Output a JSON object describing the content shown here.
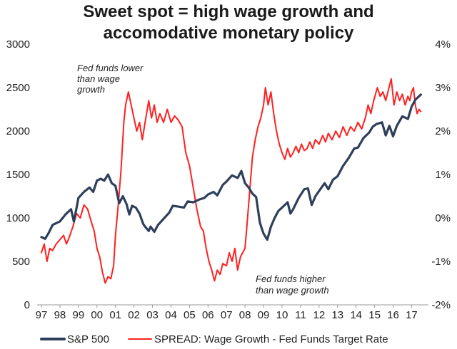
{
  "title_line1": "Sweet spot = high wage growth and",
  "title_line2": "accomodative monetary policy",
  "chart_data": {
    "type": "line",
    "title": "Sweet spot = high wage growth and accomodative monetary policy",
    "x_tick_labels": [
      "97",
      "98",
      "99",
      "00",
      "01",
      "02",
      "03",
      "04",
      "05",
      "06",
      "07",
      "08",
      "09",
      "10",
      "11",
      "12",
      "13",
      "14",
      "15",
      "16",
      "17"
    ],
    "xlim": [
      1997,
      2017.6
    ],
    "left_axis": {
      "ticks": [
        0,
        500,
        1000,
        1500,
        2000,
        2500,
        3000
      ],
      "ylim": [
        0,
        3000
      ]
    },
    "right_axis": {
      "ticks": [
        -2,
        -1,
        0,
        1,
        2,
        3,
        4
      ],
      "tick_labels": [
        "-2%",
        "-1%",
        "0%",
        "1%",
        "2%",
        "3%",
        "4%"
      ],
      "ylim": [
        -2,
        4
      ]
    },
    "grid": false,
    "legend_position": "bottom",
    "annotations": [
      {
        "text_lines": [
          "Fed funds lower",
          "than wage",
          "growth"
        ],
        "near": "2000-2001, upper-left"
      },
      {
        "text_lines": [
          "Fed funds higher",
          "than wage growth"
        ],
        "near": "2009-2011, bottom"
      }
    ],
    "series": [
      {
        "name": "S&P 500",
        "axis": "left",
        "color": "#2e3f5c",
        "points": [
          [
            1997.0,
            780
          ],
          [
            1997.2,
            760
          ],
          [
            1997.4,
            830
          ],
          [
            1997.6,
            920
          ],
          [
            1997.8,
            940
          ],
          [
            1998.0,
            960
          ],
          [
            1998.3,
            1040
          ],
          [
            1998.6,
            1100
          ],
          [
            1998.75,
            960
          ],
          [
            1998.9,
            1120
          ],
          [
            1999.0,
            1230
          ],
          [
            1999.3,
            1300
          ],
          [
            1999.6,
            1350
          ],
          [
            1999.8,
            1300
          ],
          [
            2000.0,
            1430
          ],
          [
            2000.2,
            1450
          ],
          [
            2000.4,
            1430
          ],
          [
            2000.6,
            1500
          ],
          [
            2000.8,
            1400
          ],
          [
            2001.0,
            1370
          ],
          [
            2001.2,
            1170
          ],
          [
            2001.4,
            1250
          ],
          [
            2001.6,
            1160
          ],
          [
            2001.75,
            1040
          ],
          [
            2001.9,
            1140
          ],
          [
            2002.1,
            1120
          ],
          [
            2002.3,
            1050
          ],
          [
            2002.5,
            930
          ],
          [
            2002.6,
            900
          ],
          [
            2002.8,
            850
          ],
          [
            2002.9,
            900
          ],
          [
            2003.1,
            840
          ],
          [
            2003.3,
            920
          ],
          [
            2003.6,
            990
          ],
          [
            2003.9,
            1060
          ],
          [
            2004.1,
            1140
          ],
          [
            2004.4,
            1130
          ],
          [
            2004.7,
            1120
          ],
          [
            2004.9,
            1190
          ],
          [
            2005.2,
            1180
          ],
          [
            2005.5,
            1210
          ],
          [
            2005.8,
            1230
          ],
          [
            2006.0,
            1270
          ],
          [
            2006.3,
            1300
          ],
          [
            2006.5,
            1260
          ],
          [
            2006.8,
            1380
          ],
          [
            2007.0,
            1420
          ],
          [
            2007.3,
            1490
          ],
          [
            2007.6,
            1460
          ],
          [
            2007.8,
            1540
          ],
          [
            2008.0,
            1400
          ],
          [
            2008.2,
            1350
          ],
          [
            2008.4,
            1280
          ],
          [
            2008.6,
            1240
          ],
          [
            2008.8,
            950
          ],
          [
            2008.9,
            880
          ],
          [
            2009.0,
            820
          ],
          [
            2009.2,
            750
          ],
          [
            2009.4,
            900
          ],
          [
            2009.6,
            1000
          ],
          [
            2009.8,
            1080
          ],
          [
            2010.0,
            1120
          ],
          [
            2010.3,
            1180
          ],
          [
            2010.45,
            1050
          ],
          [
            2010.6,
            1100
          ],
          [
            2010.9,
            1230
          ],
          [
            2011.2,
            1330
          ],
          [
            2011.4,
            1340
          ],
          [
            2011.6,
            1150
          ],
          [
            2011.8,
            1250
          ],
          [
            2012.0,
            1310
          ],
          [
            2012.3,
            1400
          ],
          [
            2012.5,
            1330
          ],
          [
            2012.75,
            1440
          ],
          [
            2013.0,
            1480
          ],
          [
            2013.3,
            1600
          ],
          [
            2013.6,
            1690
          ],
          [
            2013.9,
            1800
          ],
          [
            2014.1,
            1810
          ],
          [
            2014.4,
            1920
          ],
          [
            2014.7,
            1980
          ],
          [
            2014.9,
            2050
          ],
          [
            2015.1,
            2080
          ],
          [
            2015.4,
            2100
          ],
          [
            2015.6,
            1950
          ],
          [
            2015.8,
            2060
          ],
          [
            2016.0,
            1940
          ],
          [
            2016.2,
            2060
          ],
          [
            2016.5,
            2170
          ],
          [
            2016.8,
            2140
          ],
          [
            2017.0,
            2280
          ],
          [
            2017.2,
            2360
          ],
          [
            2017.4,
            2400
          ],
          [
            2017.5,
            2420
          ]
        ]
      },
      {
        "name": "SPREAD: Wage Growth - Fed Funds Target Rate",
        "axis": "right",
        "color": "#ff2020",
        "points": [
          [
            1997.0,
            -0.8
          ],
          [
            1997.15,
            -0.6
          ],
          [
            1997.3,
            -1.0
          ],
          [
            1997.45,
            -0.7
          ],
          [
            1997.6,
            -0.75
          ],
          [
            1997.8,
            -0.6
          ],
          [
            1998.0,
            -0.5
          ],
          [
            1998.2,
            -0.4
          ],
          [
            1998.35,
            -0.6
          ],
          [
            1998.5,
            -0.45
          ],
          [
            1998.7,
            -0.2
          ],
          [
            1998.9,
            0.1
          ],
          [
            1999.1,
            0.0
          ],
          [
            1999.3,
            0.3
          ],
          [
            1999.5,
            0.2
          ],
          [
            1999.7,
            -0.1
          ],
          [
            1999.85,
            -0.3
          ],
          [
            2000.0,
            -0.7
          ],
          [
            2000.15,
            -0.9
          ],
          [
            2000.3,
            -1.25
          ],
          [
            2000.45,
            -1.5
          ],
          [
            2000.6,
            -1.35
          ],
          [
            2000.75,
            -1.4
          ],
          [
            2000.9,
            -1.1
          ],
          [
            2001.0,
            -0.4
          ],
          [
            2001.15,
            0.3
          ],
          [
            2001.3,
            1.1
          ],
          [
            2001.45,
            2.2
          ],
          [
            2001.55,
            2.6
          ],
          [
            2001.7,
            2.9
          ],
          [
            2001.85,
            2.6
          ],
          [
            2002.0,
            2.3
          ],
          [
            2002.15,
            2.0
          ],
          [
            2002.3,
            2.2
          ],
          [
            2002.45,
            1.8
          ],
          [
            2002.6,
            2.2
          ],
          [
            2002.8,
            2.7
          ],
          [
            2002.95,
            2.3
          ],
          [
            2003.1,
            2.6
          ],
          [
            2003.25,
            2.2
          ],
          [
            2003.4,
            2.4
          ],
          [
            2003.6,
            2.2
          ],
          [
            2003.8,
            2.5
          ],
          [
            2004.0,
            2.2
          ],
          [
            2004.2,
            2.35
          ],
          [
            2004.4,
            2.25
          ],
          [
            2004.6,
            2.1
          ],
          [
            2004.8,
            1.5
          ],
          [
            2005.0,
            1.2
          ],
          [
            2005.2,
            0.7
          ],
          [
            2005.4,
            0.2
          ],
          [
            2005.6,
            -0.2
          ],
          [
            2005.75,
            -0.3
          ],
          [
            2005.9,
            -0.7
          ],
          [
            2006.05,
            -1.0
          ],
          [
            2006.2,
            -1.2
          ],
          [
            2006.35,
            -1.45
          ],
          [
            2006.5,
            -1.2
          ],
          [
            2006.65,
            -1.3
          ],
          [
            2006.8,
            -1.05
          ],
          [
            2007.0,
            -1.1
          ],
          [
            2007.15,
            -0.8
          ],
          [
            2007.3,
            -1.0
          ],
          [
            2007.45,
            -0.7
          ],
          [
            2007.6,
            -1.2
          ],
          [
            2007.75,
            -0.9
          ],
          [
            2008.0,
            -0.7
          ],
          [
            2008.1,
            -0.2
          ],
          [
            2008.25,
            0.6
          ],
          [
            2008.4,
            1.4
          ],
          [
            2008.55,
            1.8
          ],
          [
            2008.7,
            2.1
          ],
          [
            2008.85,
            2.3
          ],
          [
            2009.0,
            2.6
          ],
          [
            2009.1,
            3.0
          ],
          [
            2009.25,
            2.6
          ],
          [
            2009.4,
            2.9
          ],
          [
            2009.55,
            2.4
          ],
          [
            2009.7,
            2.0
          ],
          [
            2009.85,
            1.7
          ],
          [
            2010.0,
            1.5
          ],
          [
            2010.15,
            1.35
          ],
          [
            2010.3,
            1.6
          ],
          [
            2010.45,
            1.4
          ],
          [
            2010.6,
            1.5
          ],
          [
            2010.75,
            1.65
          ],
          [
            2010.9,
            1.5
          ],
          [
            2011.05,
            1.7
          ],
          [
            2011.2,
            1.55
          ],
          [
            2011.35,
            1.6
          ],
          [
            2011.5,
            1.75
          ],
          [
            2011.65,
            1.6
          ],
          [
            2011.8,
            1.8
          ],
          [
            2012.0,
            1.7
          ],
          [
            2012.2,
            1.9
          ],
          [
            2012.35,
            1.75
          ],
          [
            2012.5,
            1.95
          ],
          [
            2012.7,
            1.8
          ],
          [
            2012.9,
            2.0
          ],
          [
            2013.1,
            1.85
          ],
          [
            2013.3,
            2.1
          ],
          [
            2013.5,
            1.9
          ],
          [
            2013.7,
            2.1
          ],
          [
            2013.9,
            2.0
          ],
          [
            2014.1,
            2.2
          ],
          [
            2014.3,
            2.05
          ],
          [
            2014.5,
            2.3
          ],
          [
            2014.65,
            2.6
          ],
          [
            2014.8,
            2.4
          ],
          [
            2014.95,
            2.7
          ],
          [
            2015.15,
            3.0
          ],
          [
            2015.3,
            2.8
          ],
          [
            2015.45,
            2.9
          ],
          [
            2015.6,
            2.7
          ],
          [
            2015.75,
            2.95
          ],
          [
            2015.9,
            3.2
          ],
          [
            2016.05,
            2.6
          ],
          [
            2016.2,
            2.9
          ],
          [
            2016.35,
            2.7
          ],
          [
            2016.5,
            2.85
          ],
          [
            2016.65,
            2.6
          ],
          [
            2016.8,
            2.8
          ],
          [
            2016.9,
            2.7
          ],
          [
            2017.0,
            2.9
          ],
          [
            2017.1,
            3.0
          ],
          [
            2017.2,
            2.6
          ],
          [
            2017.3,
            2.4
          ],
          [
            2017.4,
            2.5
          ],
          [
            2017.5,
            2.45
          ]
        ]
      }
    ]
  }
}
